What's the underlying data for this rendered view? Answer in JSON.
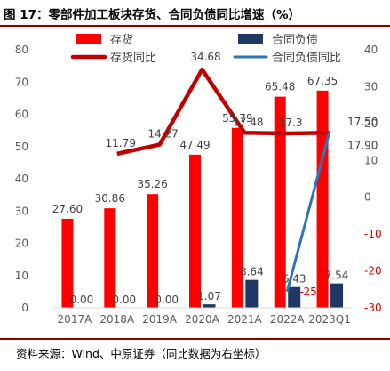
{
  "header": {
    "title": "图 17：零部件加工板块存货、合同负债同比增速（%）"
  },
  "footer": {
    "source": "资料来源：Wind、中原证券（同比数据为右坐标）"
  },
  "colors": {
    "inventory_bar": "#ff0000",
    "contract_bar": "#1f3864",
    "inventory_line": "#c00000",
    "contract_line": "#2e75b6",
    "rule": "#8b0000",
    "negative_tick": "#e00000"
  },
  "chart_data": {
    "type": "bar",
    "categories": [
      "2017A",
      "2018A",
      "2019A",
      "2020A",
      "2021A",
      "2022A",
      "2023Q1"
    ],
    "left_axis": {
      "ylim": [
        0,
        80
      ],
      "ticks": [
        "0",
        "10",
        "20",
        "30",
        "40",
        "50",
        "60",
        "70",
        "80"
      ]
    },
    "right_axis": {
      "ylim": [
        -30,
        40
      ],
      "ticks": [
        "-30",
        "-20",
        "-10",
        "0",
        "10",
        "20",
        "30",
        "40"
      ]
    },
    "series": [
      {
        "name": "存货",
        "type": "bar",
        "axis": "left",
        "values": [
          27.6,
          30.86,
          35.26,
          47.49,
          55.79,
          65.48,
          67.35
        ],
        "labels": [
          "27.60",
          "30.86",
          "35.26",
          "47.49",
          "55.79",
          "65.48",
          "67.35"
        ]
      },
      {
        "name": "合同负债",
        "type": "bar",
        "axis": "left",
        "values": [
          0,
          0,
          0,
          1.07,
          8.64,
          6.43,
          7.54
        ],
        "labels": [
          "0.00",
          "0.00",
          "0.00",
          "1.07",
          "8.64",
          "6.43",
          "7.54"
        ]
      },
      {
        "name": "存货同比",
        "type": "line",
        "axis": "right",
        "values": [
          null,
          11.79,
          14.27,
          34.68,
          17.48,
          17.3,
          17.5
        ],
        "labels": [
          "",
          "11.79",
          "14.27",
          "34.68",
          "17.48",
          "17.3",
          "17.50"
        ]
      },
      {
        "name": "合同负债同比",
        "type": "line",
        "axis": "right",
        "values": [
          null,
          null,
          null,
          null,
          null,
          -25.6,
          17.9
        ],
        "labels": [
          "",
          "",
          "",
          "",
          "",
          "-25.6",
          "17.90"
        ]
      }
    ],
    "legend": "top"
  }
}
